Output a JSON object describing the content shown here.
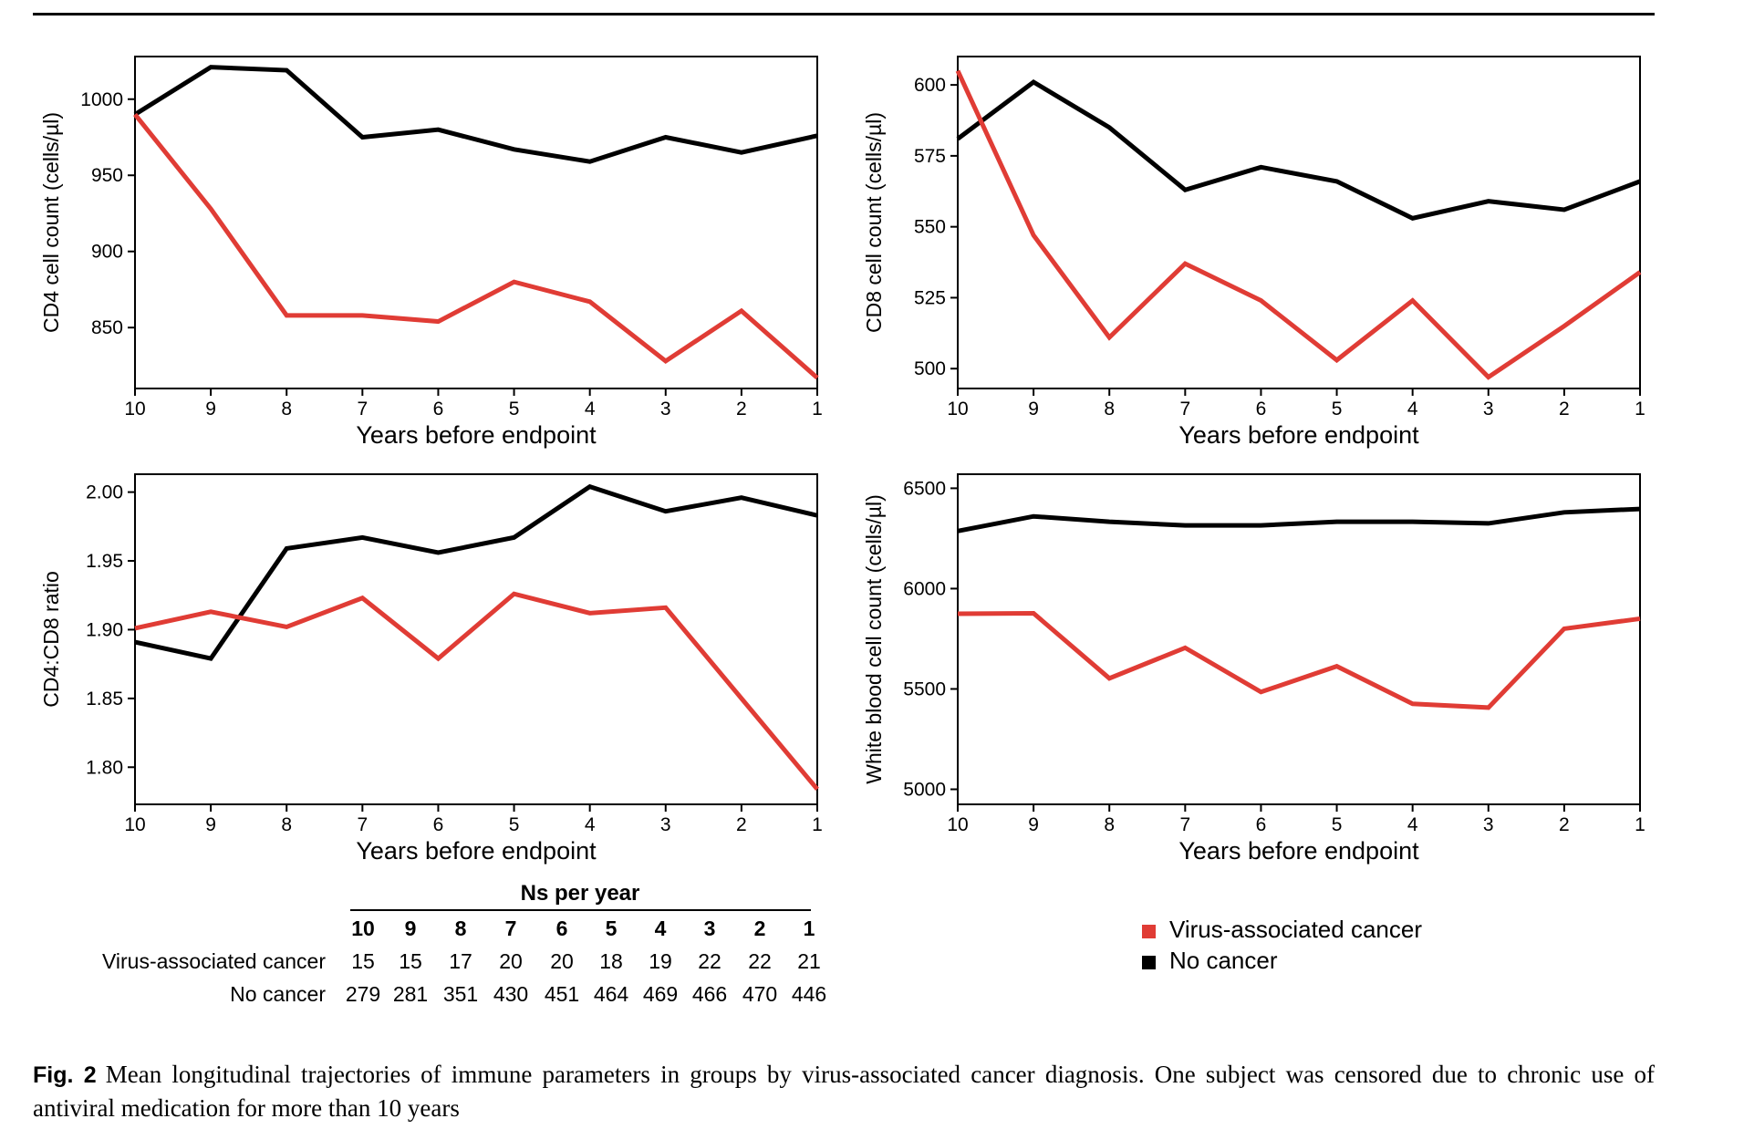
{
  "colors": {
    "virus": "#e03c35",
    "nocancer": "#000000"
  },
  "chart_data": [
    {
      "type": "line",
      "panel": "top-left",
      "xlabel": "Years before endpoint",
      "ylabel": "CD4 cell count (cells/µl)",
      "x": [
        10,
        9,
        8,
        7,
        6,
        5,
        4,
        3,
        2,
        1
      ],
      "xlim": [
        10,
        1
      ],
      "ylim": [
        810,
        1028
      ],
      "yticks": [
        850,
        900,
        950,
        1000
      ],
      "ytick_labels": [
        "850",
        "900",
        "950",
        "1000"
      ],
      "series": [
        {
          "name": "Virus-associated cancer",
          "color": "#e03c35",
          "values": [
            990,
            928,
            858,
            858,
            854,
            880,
            867,
            828,
            861,
            817
          ]
        },
        {
          "name": "No cancer",
          "color": "#000000",
          "values": [
            990,
            1021,
            1019,
            975,
            980,
            967,
            959,
            975,
            965,
            976
          ]
        }
      ]
    },
    {
      "type": "line",
      "panel": "top-right",
      "xlabel": "Years before endpoint",
      "ylabel": "CD8 cell count (cells/µl)",
      "x": [
        10,
        9,
        8,
        7,
        6,
        5,
        4,
        3,
        2,
        1
      ],
      "xlim": [
        10,
        1
      ],
      "ylim": [
        493,
        610
      ],
      "yticks": [
        500,
        525,
        550,
        575,
        600
      ],
      "ytick_labels": [
        "500",
        "525",
        "550",
        "575",
        "600"
      ],
      "series": [
        {
          "name": "Virus-associated cancer",
          "color": "#e03c35",
          "values": [
            605,
            547,
            511,
            537,
            524,
            503,
            524,
            497,
            515,
            534
          ]
        },
        {
          "name": "No cancer",
          "color": "#000000",
          "values": [
            581,
            601,
            585,
            563,
            571,
            566,
            553,
            559,
            556,
            566
          ]
        }
      ]
    },
    {
      "type": "line",
      "panel": "bottom-left",
      "xlabel": "Years before endpoint",
      "ylabel": "CD4:CD8 ratio",
      "x": [
        10,
        9,
        8,
        7,
        6,
        5,
        4,
        3,
        2,
        1
      ],
      "xlim": [
        10,
        1
      ],
      "ylim": [
        1.773,
        2.013
      ],
      "yticks": [
        1.8,
        1.85,
        1.9,
        1.95,
        2.0
      ],
      "ytick_labels": [
        "1.80",
        "1.85",
        "1.90",
        "1.95",
        "2.00"
      ],
      "series": [
        {
          "name": "Virus-associated cancer",
          "color": "#e03c35",
          "values": [
            1.901,
            1.913,
            1.902,
            1.923,
            1.879,
            1.926,
            1.912,
            1.916,
            1.85,
            1.784
          ]
        },
        {
          "name": "No cancer",
          "color": "#000000",
          "values": [
            1.891,
            1.879,
            1.959,
            1.967,
            1.956,
            1.967,
            2.004,
            1.986,
            1.996,
            1.983
          ]
        }
      ]
    },
    {
      "type": "line",
      "panel": "bottom-right",
      "xlabel": "Years before endpoint",
      "ylabel": "White blood cell count (cells/µl)",
      "x": [
        10,
        9,
        8,
        7,
        6,
        5,
        4,
        3,
        2,
        1
      ],
      "xlim": [
        10,
        1
      ],
      "ylim": [
        4925,
        6570
      ],
      "yticks": [
        5000,
        5500,
        6000,
        6500
      ],
      "ytick_labels": [
        "5000",
        "5500",
        "6000",
        "6500"
      ],
      "series": [
        {
          "name": "Virus-associated cancer",
          "color": "#e03c35",
          "values": [
            5875,
            5877,
            5553,
            5705,
            5485,
            5613,
            5426,
            5407,
            5800,
            5850
          ]
        },
        {
          "name": "No cancer",
          "color": "#000000",
          "values": [
            6287,
            6360,
            6333,
            6315,
            6315,
            6333,
            6333,
            6325,
            6380,
            6397
          ]
        }
      ]
    }
  ],
  "ns_table": {
    "title": "Ns per year",
    "years": [
      "10",
      "9",
      "8",
      "7",
      "6",
      "5",
      "4",
      "3",
      "2",
      "1"
    ],
    "rows": [
      {
        "label": "Virus-associated cancer",
        "values": [
          "15",
          "15",
          "17",
          "20",
          "20",
          "18",
          "19",
          "22",
          "22",
          "21"
        ]
      },
      {
        "label": "No cancer",
        "values": [
          "279",
          "281",
          "351",
          "430",
          "451",
          "464",
          "469",
          "466",
          "470",
          "446"
        ]
      }
    ]
  },
  "legend": [
    {
      "label": "Virus-associated cancer",
      "color": "#e03c35"
    },
    {
      "label": "No cancer",
      "color": "#000000"
    }
  ],
  "caption": {
    "prefix": "Fig. 2",
    "text": "Mean longitudinal trajectories of immune parameters in groups by virus-associated cancer diagnosis. One subject was censored due to chronic use of antiviral medication for more than 10 years"
  }
}
